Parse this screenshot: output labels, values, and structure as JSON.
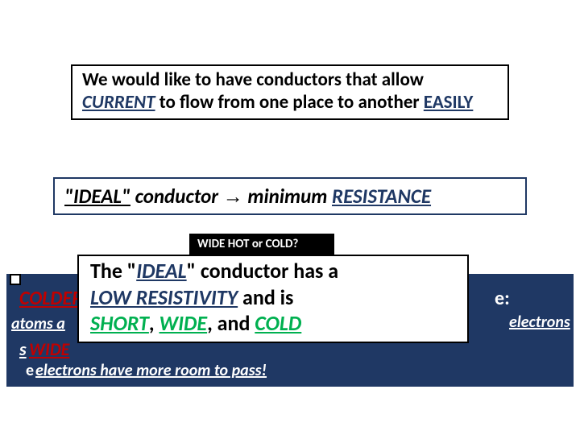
{
  "colors": {
    "navy": "#1f3864",
    "red": "#c00000",
    "green": "#00b050",
    "black": "#000000",
    "white": "#ffffff"
  },
  "box1": {
    "pre": "We would like to have conductors that allow ",
    "current": "CURRENT",
    "mid": " to flow from one place to another ",
    "easily": "EASILY"
  },
  "box2": {
    "ideal": "\"IDEAL\"",
    "cond": " conductor ",
    "arrow": "→",
    "min": " minimum ",
    "resistance": "RESISTANCE"
  },
  "box3": {
    "label": "WIDE  HOT or COLD?"
  },
  "box4": {
    "l1a": "The \"",
    "l1_ideal": "IDEAL",
    "l1b": "\" conductor has a",
    "l2_lowres": "LOW RESISTIVITY",
    "l2b": " and is",
    "l3_short": "SHORT",
    "l3_sep1": ", ",
    "l3_wide": "WIDE",
    "l3_sep2": ", and ",
    "l3_cold": "COLD"
  },
  "fragments": {
    "colder": "COLDER",
    "e_right": "e:",
    "electrons": "electrons",
    "atoms": "atoms a",
    "s": "s",
    "wide": "WIDE",
    "e2": "e",
    "room": "electrons have more room to pass!"
  }
}
